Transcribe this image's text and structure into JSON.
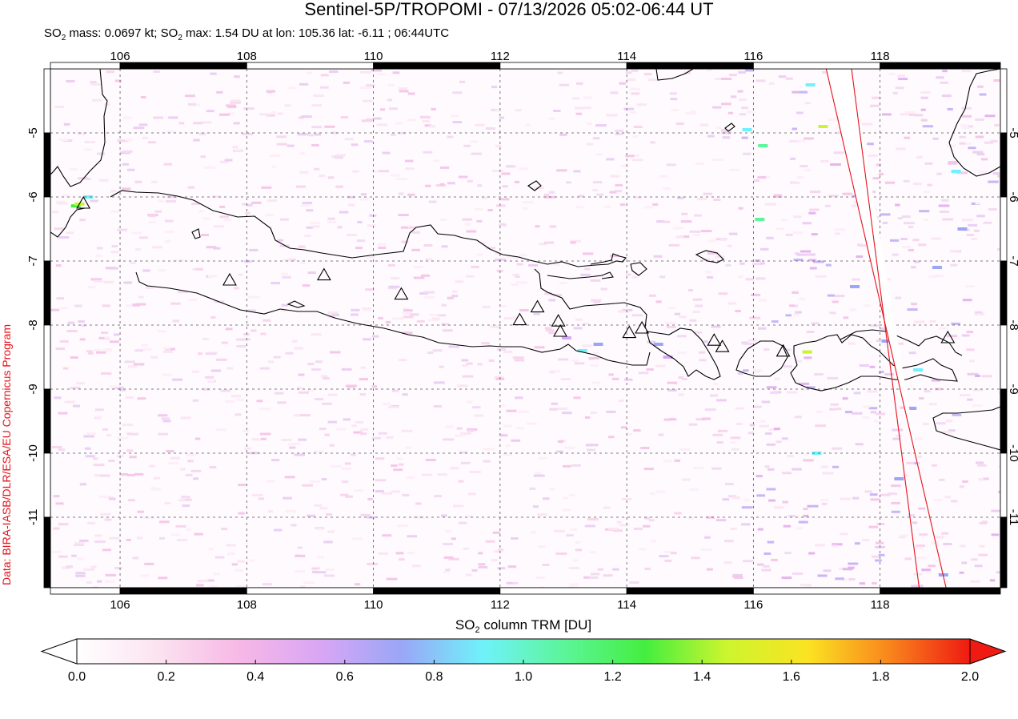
{
  "title": "Sentinel-5P/TROPOMI - 07/13/2026 05:02-06:44 UT",
  "subtitle": {
    "prefix": "SO",
    "sub1": "2",
    "mid": " mass: 0.0697 kt; SO",
    "sub2": "2",
    "rest": " max: 1.54 DU at lon: 105.36 lat: -6.11 ; 06:44UTC"
  },
  "credit": "Data: BIRA-IASB/DLR/ESA/EU Copernicus Program",
  "colorbar": {
    "label_prefix": "SO",
    "label_sub": "2",
    "label_rest": " column TRM [DU]",
    "ticks": [
      "0.0",
      "0.2",
      "0.4",
      "0.6",
      "0.8",
      "1.0",
      "1.2",
      "1.4",
      "1.6",
      "1.8",
      "2.0"
    ],
    "colors": [
      "#ffffff",
      "#fbe3f0",
      "#f7b8e6",
      "#d9a6f5",
      "#9aa6f7",
      "#6ff2fa",
      "#5cf59a",
      "#44ee3f",
      "#ccf52e",
      "#fbe322",
      "#f9861d",
      "#ef1a12"
    ]
  },
  "chart_data": {
    "type": "heatmap",
    "xlabel": "",
    "ylabel": "",
    "xlim": [
      104.9,
      119.9
    ],
    "ylim": [
      -12.1,
      -4.0
    ],
    "xticks": [
      106,
      108,
      110,
      112,
      114,
      116,
      118
    ],
    "yticks": [
      -5,
      -6,
      -7,
      -8,
      -9,
      -10,
      -11
    ],
    "xtick_labels": [
      "106",
      "108",
      "110",
      "112",
      "114",
      "116",
      "118"
    ],
    "ytick_labels": [
      "-5",
      "-6",
      "-7",
      "-8",
      "-9",
      "-10",
      "-11"
    ],
    "grid": true,
    "value_range_du": [
      0.0,
      2.0
    ],
    "max": {
      "value_du": 1.54,
      "lon": 105.36,
      "lat": -6.11
    },
    "volcanoes": [
      {
        "lon": 105.42,
        "lat": -6.1
      },
      {
        "lon": 107.73,
        "lat": -7.3
      },
      {
        "lon": 109.22,
        "lat": -7.22
      },
      {
        "lon": 110.44,
        "lat": -7.52
      },
      {
        "lon": 112.31,
        "lat": -7.92
      },
      {
        "lon": 112.59,
        "lat": -7.72
      },
      {
        "lon": 112.92,
        "lat": -7.94
      },
      {
        "lon": 112.95,
        "lat": -8.1
      },
      {
        "lon": 114.04,
        "lat": -8.12
      },
      {
        "lon": 114.24,
        "lat": -8.05
      },
      {
        "lon": 115.38,
        "lat": -8.24
      },
      {
        "lon": 115.51,
        "lat": -8.34
      },
      {
        "lon": 116.47,
        "lat": -8.41
      },
      {
        "lon": 119.07,
        "lat": -8.2
      }
    ],
    "swath_edges": [
      {
        "lon_top": 117.15,
        "lon_bottom": 119.1
      },
      {
        "lon_top": 117.55,
        "lon_bottom": 118.65
      }
    ],
    "enhanced_cells": [
      {
        "lon": 105.3,
        "lat": -6.14,
        "value_du": 1.2
      },
      {
        "lon": 105.36,
        "lat": -6.11,
        "value_du": 1.54
      },
      {
        "lon": 105.5,
        "lat": -6.0,
        "value_du": 0.9
      },
      {
        "lon": 113.3,
        "lat": -8.4,
        "value_du": 0.9
      },
      {
        "lon": 113.55,
        "lat": -8.3,
        "value_du": 0.8
      },
      {
        "lon": 113.05,
        "lat": -8.2,
        "value_du": 0.6
      },
      {
        "lon": 114.5,
        "lat": -8.3,
        "value_du": 0.7
      },
      {
        "lon": 114.65,
        "lat": -8.5,
        "value_du": 0.6
      },
      {
        "lon": 117.1,
        "lat": -4.9,
        "value_du": 1.4
      },
      {
        "lon": 116.15,
        "lat": -5.2,
        "value_du": 1.0
      },
      {
        "lon": 115.9,
        "lat": -4.95,
        "value_du": 0.9
      },
      {
        "lon": 116.9,
        "lat": -4.25,
        "value_du": 0.9
      },
      {
        "lon": 116.85,
        "lat": -8.42,
        "value_du": 1.4
      },
      {
        "lon": 116.1,
        "lat": -6.35,
        "value_du": 1.0
      },
      {
        "lon": 118.1,
        "lat": -8.25,
        "value_du": 0.8
      },
      {
        "lon": 118.6,
        "lat": -8.7,
        "value_du": 0.9
      },
      {
        "lon": 119.2,
        "lat": -5.6,
        "value_du": 0.9
      },
      {
        "lon": 118.9,
        "lat": -7.1,
        "value_du": 0.8
      },
      {
        "lon": 119.3,
        "lat": -6.5,
        "value_du": 0.8
      },
      {
        "lon": 117.0,
        "lat": -10.0,
        "value_du": 0.9
      },
      {
        "lon": 118.5,
        "lat": -9.3,
        "value_du": 0.8
      },
      {
        "lon": 119.0,
        "lat": -11.9,
        "value_du": 0.7
      },
      {
        "lon": 117.6,
        "lat": -7.4,
        "value_du": 0.8
      },
      {
        "lon": 118.3,
        "lat": -10.4,
        "value_du": 0.7
      }
    ]
  }
}
